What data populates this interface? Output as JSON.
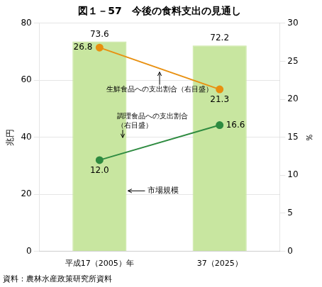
{
  "chart_data": {
    "type": "bar",
    "title": "図１－57　今後の食料支出の見通し",
    "categories": [
      "平成17（2005）年",
      "37（2025）"
    ],
    "series": [
      {
        "type": "bar",
        "color": "#c8e6a0",
        "values": [
          73.6,
          72.2
        ],
        "value_labels": [
          "73.6",
          "72.2"
        ]
      },
      {
        "type": "line",
        "axis": "y2",
        "color": "#e89010",
        "marker": "circle",
        "values": [
          26.8,
          21.3
        ],
        "value_labels": [
          "26.8",
          "21.3"
        ]
      },
      {
        "type": "line",
        "axis": "y2",
        "color": "#2e8b40",
        "marker": "circle",
        "values": [
          12.0,
          16.6
        ],
        "value_labels": [
          "12.0",
          "16.6"
        ]
      }
    ],
    "data_labels": true,
    "annotations": [
      "生鮮食品への支出割合（右目盛）",
      "調理食品への支出割合",
      "（右目盛）",
      "市場規模"
    ],
    "ylabel": "兆円",
    "y2label": "％",
    "ylim": [
      0,
      80
    ],
    "yticks": [
      0,
      20,
      40,
      60,
      80
    ],
    "y2lim": [
      0,
      30
    ],
    "y2ticks": [
      0,
      5,
      10,
      15,
      20,
      25,
      30
    ],
    "grid": true,
    "source": "資料：農林水産政策研究所資料"
  }
}
